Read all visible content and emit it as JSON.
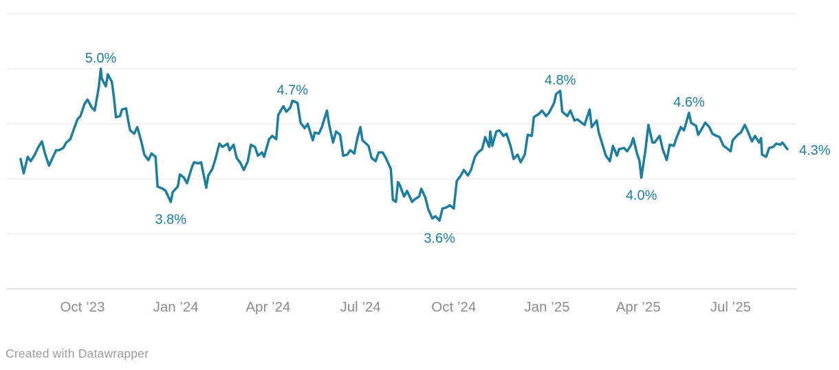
{
  "footer": {
    "credit": "Created with Datawrapper"
  },
  "chart_data": {
    "type": "line",
    "title": "",
    "ylabel": "",
    "xlabel": "",
    "unit": "%",
    "grid": true,
    "legend_position": "none",
    "y_range": [
      3.0,
      5.5
    ],
    "y_gridlines": [
      5.5,
      5.0,
      4.5,
      4.0,
      3.5,
      3.0
    ],
    "x_domain": [
      "2023-08-01",
      "2025-08-26"
    ],
    "x_ticks": [
      {
        "date": "2023-10-01",
        "label": "Oct ’23"
      },
      {
        "date": "2024-01-01",
        "label": "Jan ’24"
      },
      {
        "date": "2024-04-01",
        "label": "Apr ’24"
      },
      {
        "date": "2024-07-01",
        "label": "Jul ’24"
      },
      {
        "date": "2024-10-01",
        "label": "Oct ’24"
      },
      {
        "date": "2025-01-01",
        "label": "Jan ’25"
      },
      {
        "date": "2025-04-01",
        "label": "Apr ’25"
      },
      {
        "date": "2025-07-01",
        "label": "Jul ’25"
      }
    ],
    "colors": {
      "line": "#1d7d9e",
      "label": "#1d7d9e",
      "grid": "#e3e3e3",
      "axis_line": "#c9c9c9",
      "tick_label": "#8b8b8b"
    },
    "annotations": [
      {
        "date": "2023-10-19",
        "value": 5.0,
        "text": "5.0%",
        "placement": "above"
      },
      {
        "date": "2023-12-27",
        "value": 3.79,
        "text": "3.8%",
        "placement": "below"
      },
      {
        "date": "2024-04-25",
        "value": 4.71,
        "text": "4.7%",
        "placement": "above"
      },
      {
        "date": "2024-09-17",
        "value": 3.62,
        "text": "3.6%",
        "placement": "below"
      },
      {
        "date": "2025-01-14",
        "value": 4.8,
        "text": "4.8%",
        "placement": "above"
      },
      {
        "date": "2025-04-04",
        "value": 4.01,
        "text": "4.0%",
        "placement": "below"
      },
      {
        "date": "2025-05-21",
        "value": 4.6,
        "text": "4.6%",
        "placement": "above"
      },
      {
        "date": "2025-08-26",
        "value": 4.27,
        "text": "4.3%",
        "placement": "end"
      }
    ],
    "points": [
      [
        "2023-08-01",
        4.18
      ],
      [
        "2023-08-04",
        4.05
      ],
      [
        "2023-08-08",
        4.2
      ],
      [
        "2023-08-11",
        4.16
      ],
      [
        "2023-08-15",
        4.22
      ],
      [
        "2023-08-18",
        4.28
      ],
      [
        "2023-08-22",
        4.34
      ],
      [
        "2023-08-25",
        4.23
      ],
      [
        "2023-08-29",
        4.12
      ],
      [
        "2023-09-01",
        4.18
      ],
      [
        "2023-09-05",
        4.26
      ],
      [
        "2023-09-08",
        4.26
      ],
      [
        "2023-09-12",
        4.28
      ],
      [
        "2023-09-15",
        4.33
      ],
      [
        "2023-09-19",
        4.36
      ],
      [
        "2023-09-22",
        4.44
      ],
      [
        "2023-09-26",
        4.54
      ],
      [
        "2023-09-29",
        4.57
      ],
      [
        "2023-10-03",
        4.68
      ],
      [
        "2023-10-06",
        4.72
      ],
      [
        "2023-10-10",
        4.65
      ],
      [
        "2023-10-13",
        4.62
      ],
      [
        "2023-10-17",
        4.83
      ],
      [
        "2023-10-19",
        5.0
      ],
      [
        "2023-10-20",
        4.91
      ],
      [
        "2023-10-24",
        4.84
      ],
      [
        "2023-10-26",
        4.95
      ],
      [
        "2023-10-30",
        4.88
      ],
      [
        "2023-11-01",
        4.74
      ],
      [
        "2023-11-03",
        4.56
      ],
      [
        "2023-11-07",
        4.57
      ],
      [
        "2023-11-09",
        4.63
      ],
      [
        "2023-11-13",
        4.64
      ],
      [
        "2023-11-15",
        4.53
      ],
      [
        "2023-11-17",
        4.44
      ],
      [
        "2023-11-21",
        4.41
      ],
      [
        "2023-11-24",
        4.47
      ],
      [
        "2023-11-28",
        4.34
      ],
      [
        "2023-12-01",
        4.22
      ],
      [
        "2023-12-05",
        4.17
      ],
      [
        "2023-12-08",
        4.23
      ],
      [
        "2023-12-12",
        4.2
      ],
      [
        "2023-12-14",
        3.93
      ],
      [
        "2023-12-19",
        3.91
      ],
      [
        "2023-12-22",
        3.89
      ],
      [
        "2023-12-27",
        3.79
      ],
      [
        "2023-12-29",
        3.88
      ],
      [
        "2024-01-03",
        3.93
      ],
      [
        "2024-01-05",
        4.04
      ],
      [
        "2024-01-09",
        4.01
      ],
      [
        "2024-01-12",
        3.96
      ],
      [
        "2024-01-17",
        4.11
      ],
      [
        "2024-01-19",
        4.15
      ],
      [
        "2024-01-23",
        4.14
      ],
      [
        "2024-01-26",
        4.15
      ],
      [
        "2024-01-31",
        3.92
      ],
      [
        "2024-02-02",
        4.03
      ],
      [
        "2024-02-06",
        4.09
      ],
      [
        "2024-02-09",
        4.18
      ],
      [
        "2024-02-13",
        4.32
      ],
      [
        "2024-02-16",
        4.29
      ],
      [
        "2024-02-21",
        4.32
      ],
      [
        "2024-02-23",
        4.26
      ],
      [
        "2024-02-27",
        4.31
      ],
      [
        "2024-03-01",
        4.19
      ],
      [
        "2024-03-05",
        4.14
      ],
      [
        "2024-03-08",
        4.08
      ],
      [
        "2024-03-12",
        4.16
      ],
      [
        "2024-03-15",
        4.31
      ],
      [
        "2024-03-19",
        4.29
      ],
      [
        "2024-03-22",
        4.21
      ],
      [
        "2024-03-26",
        4.24
      ],
      [
        "2024-03-28",
        4.2
      ],
      [
        "2024-04-02",
        4.36
      ],
      [
        "2024-04-05",
        4.39
      ],
      [
        "2024-04-09",
        4.36
      ],
      [
        "2024-04-11",
        4.58
      ],
      [
        "2024-04-16",
        4.66
      ],
      [
        "2024-04-19",
        4.61
      ],
      [
        "2024-04-23",
        4.65
      ],
      [
        "2024-04-25",
        4.71
      ],
      [
        "2024-04-30",
        4.69
      ],
      [
        "2024-05-03",
        4.51
      ],
      [
        "2024-05-07",
        4.46
      ],
      [
        "2024-05-10",
        4.5
      ],
      [
        "2024-05-15",
        4.35
      ],
      [
        "2024-05-17",
        4.42
      ],
      [
        "2024-05-21",
        4.41
      ],
      [
        "2024-05-24",
        4.47
      ],
      [
        "2024-05-29",
        4.62
      ],
      [
        "2024-05-31",
        4.5
      ],
      [
        "2024-06-04",
        4.33
      ],
      [
        "2024-06-07",
        4.43
      ],
      [
        "2024-06-11",
        4.4
      ],
      [
        "2024-06-14",
        4.21
      ],
      [
        "2024-06-18",
        4.22
      ],
      [
        "2024-06-21",
        4.26
      ],
      [
        "2024-06-25",
        4.23
      ],
      [
        "2024-06-28",
        4.37
      ],
      [
        "2024-07-01",
        4.47
      ],
      [
        "2024-07-03",
        4.35
      ],
      [
        "2024-07-09",
        4.3
      ],
      [
        "2024-07-12",
        4.19
      ],
      [
        "2024-07-16",
        4.16
      ],
      [
        "2024-07-19",
        4.24
      ],
      [
        "2024-07-23",
        4.24
      ],
      [
        "2024-07-26",
        4.19
      ],
      [
        "2024-07-31",
        4.09
      ],
      [
        "2024-08-02",
        3.81
      ],
      [
        "2024-08-05",
        3.79
      ],
      [
        "2024-08-07",
        3.97
      ],
      [
        "2024-08-09",
        3.94
      ],
      [
        "2024-08-13",
        3.84
      ],
      [
        "2024-08-16",
        3.89
      ],
      [
        "2024-08-21",
        3.79
      ],
      [
        "2024-08-23",
        3.81
      ],
      [
        "2024-08-28",
        3.84
      ],
      [
        "2024-08-30",
        3.91
      ],
      [
        "2024-09-03",
        3.83
      ],
      [
        "2024-09-06",
        3.72
      ],
      [
        "2024-09-10",
        3.64
      ],
      [
        "2024-09-13",
        3.66
      ],
      [
        "2024-09-17",
        3.62
      ],
      [
        "2024-09-20",
        3.73
      ],
      [
        "2024-09-24",
        3.74
      ],
      [
        "2024-09-27",
        3.76
      ],
      [
        "2024-10-01",
        3.73
      ],
      [
        "2024-10-04",
        3.98
      ],
      [
        "2024-10-08",
        4.03
      ],
      [
        "2024-10-11",
        4.08
      ],
      [
        "2024-10-15",
        4.03
      ],
      [
        "2024-10-18",
        4.08
      ],
      [
        "2024-10-22",
        4.2
      ],
      [
        "2024-10-25",
        4.24
      ],
      [
        "2024-10-29",
        4.27
      ],
      [
        "2024-11-01",
        4.38
      ],
      [
        "2024-11-05",
        4.29
      ],
      [
        "2024-11-06",
        4.43
      ],
      [
        "2024-11-08",
        4.3
      ],
      [
        "2024-11-12",
        4.43
      ],
      [
        "2024-11-15",
        4.44
      ],
      [
        "2024-11-19",
        4.39
      ],
      [
        "2024-11-22",
        4.41
      ],
      [
        "2024-11-26",
        4.3
      ],
      [
        "2024-11-29",
        4.18
      ],
      [
        "2024-12-03",
        4.22
      ],
      [
        "2024-12-06",
        4.15
      ],
      [
        "2024-12-10",
        4.22
      ],
      [
        "2024-12-13",
        4.4
      ],
      [
        "2024-12-17",
        4.39
      ],
      [
        "2024-12-19",
        4.56
      ],
      [
        "2024-12-24",
        4.59
      ],
      [
        "2024-12-27",
        4.62
      ],
      [
        "2024-12-31",
        4.57
      ],
      [
        "2025-01-03",
        4.6
      ],
      [
        "2025-01-08",
        4.69
      ],
      [
        "2025-01-10",
        4.77
      ],
      [
        "2025-01-14",
        4.8
      ],
      [
        "2025-01-16",
        4.61
      ],
      [
        "2025-01-21",
        4.57
      ],
      [
        "2025-01-24",
        4.62
      ],
      [
        "2025-01-28",
        4.53
      ],
      [
        "2025-01-31",
        4.54
      ],
      [
        "2025-02-04",
        4.51
      ],
      [
        "2025-02-07",
        4.49
      ],
      [
        "2025-02-12",
        4.63
      ],
      [
        "2025-02-14",
        4.47
      ],
      [
        "2025-02-19",
        4.53
      ],
      [
        "2025-02-21",
        4.42
      ],
      [
        "2025-02-25",
        4.3
      ],
      [
        "2025-02-28",
        4.21
      ],
      [
        "2025-03-04",
        4.16
      ],
      [
        "2025-03-07",
        4.3
      ],
      [
        "2025-03-11",
        4.21
      ],
      [
        "2025-03-13",
        4.27
      ],
      [
        "2025-03-18",
        4.28
      ],
      [
        "2025-03-21",
        4.25
      ],
      [
        "2025-03-25",
        4.31
      ],
      [
        "2025-03-27",
        4.37
      ],
      [
        "2025-03-31",
        4.22
      ],
      [
        "2025-04-02",
        4.17
      ],
      [
        "2025-04-04",
        4.01
      ],
      [
        "2025-04-08",
        4.26
      ],
      [
        "2025-04-09",
        4.34
      ],
      [
        "2025-04-11",
        4.49
      ],
      [
        "2025-04-15",
        4.33
      ],
      [
        "2025-04-17",
        4.33
      ],
      [
        "2025-04-22",
        4.39
      ],
      [
        "2025-04-25",
        4.27
      ],
      [
        "2025-04-29",
        4.17
      ],
      [
        "2025-05-02",
        4.31
      ],
      [
        "2025-05-06",
        4.3
      ],
      [
        "2025-05-09",
        4.38
      ],
      [
        "2025-05-13",
        4.47
      ],
      [
        "2025-05-16",
        4.44
      ],
      [
        "2025-05-21",
        4.6
      ],
      [
        "2025-05-23",
        4.51
      ],
      [
        "2025-05-28",
        4.48
      ],
      [
        "2025-05-30",
        4.4
      ],
      [
        "2025-06-03",
        4.46
      ],
      [
        "2025-06-06",
        4.51
      ],
      [
        "2025-06-10",
        4.47
      ],
      [
        "2025-06-13",
        4.41
      ],
      [
        "2025-06-17",
        4.39
      ],
      [
        "2025-06-20",
        4.38
      ],
      [
        "2025-06-24",
        4.3
      ],
      [
        "2025-06-27",
        4.28
      ],
      [
        "2025-07-01",
        4.25
      ],
      [
        "2025-07-03",
        4.35
      ],
      [
        "2025-07-08",
        4.4
      ],
      [
        "2025-07-11",
        4.42
      ],
      [
        "2025-07-15",
        4.49
      ],
      [
        "2025-07-18",
        4.43
      ],
      [
        "2025-07-22",
        4.34
      ],
      [
        "2025-07-25",
        4.39
      ],
      [
        "2025-07-29",
        4.33
      ],
      [
        "2025-07-31",
        4.37
      ],
      [
        "2025-08-01",
        4.22
      ],
      [
        "2025-08-05",
        4.2
      ],
      [
        "2025-08-08",
        4.28
      ],
      [
        "2025-08-12",
        4.29
      ],
      [
        "2025-08-15",
        4.32
      ],
      [
        "2025-08-19",
        4.31
      ],
      [
        "2025-08-21",
        4.33
      ],
      [
        "2025-08-26",
        4.27
      ]
    ]
  }
}
